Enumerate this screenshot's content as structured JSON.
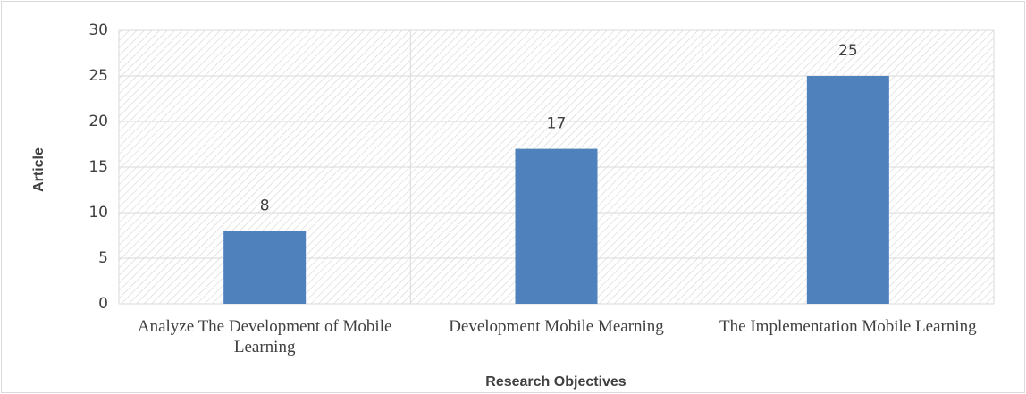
{
  "chart_data": {
    "type": "bar",
    "categories": [
      "Analyze The Development of Mobile Learning",
      "Development Mobile Mearning",
      "The Implementation Mobile Learning"
    ],
    "values": [
      8,
      17,
      25
    ],
    "color": "#4f81bd",
    "ylim": [
      0,
      30
    ],
    "yticks": [
      0,
      5,
      10,
      15,
      20,
      25,
      30
    ],
    "grid": true,
    "x_label": "Research Objectives",
    "y_label": "Article"
  }
}
